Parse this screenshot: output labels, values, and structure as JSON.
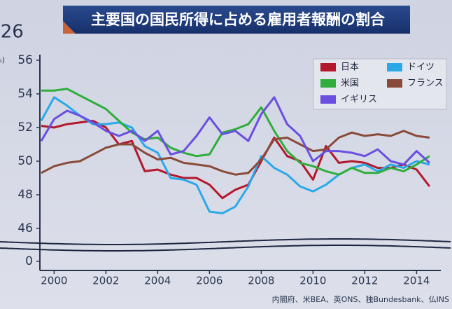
{
  "overlay": {
    "clock": ":26"
  },
  "chart_data": {
    "type": "line",
    "title": "主要国の国民所得に占める雇用者報酬の割合",
    "y_label": "(%)",
    "source": "内閣府、米BEA、英ONS、独Bundesbank、仏INS",
    "x": [
      1999.5,
      2000,
      2000.5,
      2001,
      2001.5,
      2002,
      2002.5,
      2003,
      2003.5,
      2004,
      2004.5,
      2005,
      2005.5,
      2006,
      2006.5,
      2007,
      2007.5,
      2008,
      2008.5,
      2009,
      2009.5,
      2010,
      2010.5,
      2011,
      2011.5,
      2012,
      2012.5,
      2013,
      2013.5,
      2014,
      2014.5
    ],
    "xlim": [
      1999.45,
      2014.8
    ],
    "xticks": [
      2000,
      2002,
      2004,
      2006,
      2008,
      2010,
      2012,
      2014
    ],
    "ylim": [
      0,
      56
    ],
    "axis_break": [
      0,
      45
    ],
    "yticks": [
      0,
      46,
      48,
      50,
      52,
      54,
      56
    ],
    "grid": false,
    "legend": "top-right",
    "series": [
      {
        "name": "日本",
        "color": "#b3182c",
        "values": [
          52.1,
          52.0,
          52.2,
          52.3,
          52.4,
          52.0,
          51.0,
          51.2,
          49.4,
          49.5,
          49.2,
          49.0,
          49.0,
          48.6,
          47.8,
          48.3,
          48.6,
          50.0,
          51.4,
          50.3,
          50.0,
          48.9,
          50.9,
          49.9,
          50.0,
          49.9,
          49.6,
          49.6,
          49.8,
          49.5,
          48.5
        ]
      },
      {
        "name": "ドイツ",
        "color": "#2aa8e8",
        "values": [
          52.4,
          53.8,
          53.3,
          52.7,
          52.2,
          52.2,
          52.3,
          52.0,
          50.9,
          50.5,
          49.0,
          48.9,
          48.6,
          47.0,
          46.9,
          47.3,
          48.5,
          50.3,
          49.6,
          49.2,
          48.5,
          48.2,
          48.6,
          49.2,
          49.6,
          49.8,
          49.4,
          49.8,
          49.6,
          50.0,
          49.8
        ]
      },
      {
        "name": "米国",
        "color": "#2fae3c",
        "values": [
          54.2,
          54.2,
          54.3,
          53.9,
          53.5,
          53.1,
          52.4,
          51.7,
          51.3,
          51.4,
          50.8,
          50.5,
          50.3,
          50.4,
          51.7,
          51.9,
          52.2,
          53.2,
          51.8,
          50.6,
          49.9,
          49.7,
          49.4,
          49.2,
          49.6,
          49.3,
          49.3,
          49.6,
          49.4,
          49.8,
          50.3
        ]
      },
      {
        "name": "フランス",
        "color": "#8a4a3a",
        "values": [
          49.3,
          49.7,
          49.9,
          50.0,
          50.4,
          50.8,
          51.0,
          51.0,
          50.5,
          50.1,
          50.2,
          49.9,
          49.8,
          49.7,
          49.4,
          49.2,
          49.3,
          50.1,
          51.3,
          51.4,
          51.0,
          50.6,
          50.7,
          51.4,
          51.7,
          51.5,
          51.6,
          51.5,
          51.8,
          51.5,
          51.4
        ]
      },
      {
        "name": "イギリス",
        "color": "#6a4fe0",
        "values": [
          51.2,
          52.5,
          53.0,
          52.7,
          52.3,
          51.8,
          51.5,
          51.8,
          51.2,
          51.8,
          50.4,
          50.6,
          51.5,
          52.6,
          51.6,
          51.8,
          51.2,
          52.8,
          53.8,
          52.2,
          51.5,
          50.0,
          50.6,
          50.6,
          50.5,
          50.3,
          50.7,
          50.0,
          49.8,
          50.6,
          49.9
        ]
      }
    ]
  }
}
